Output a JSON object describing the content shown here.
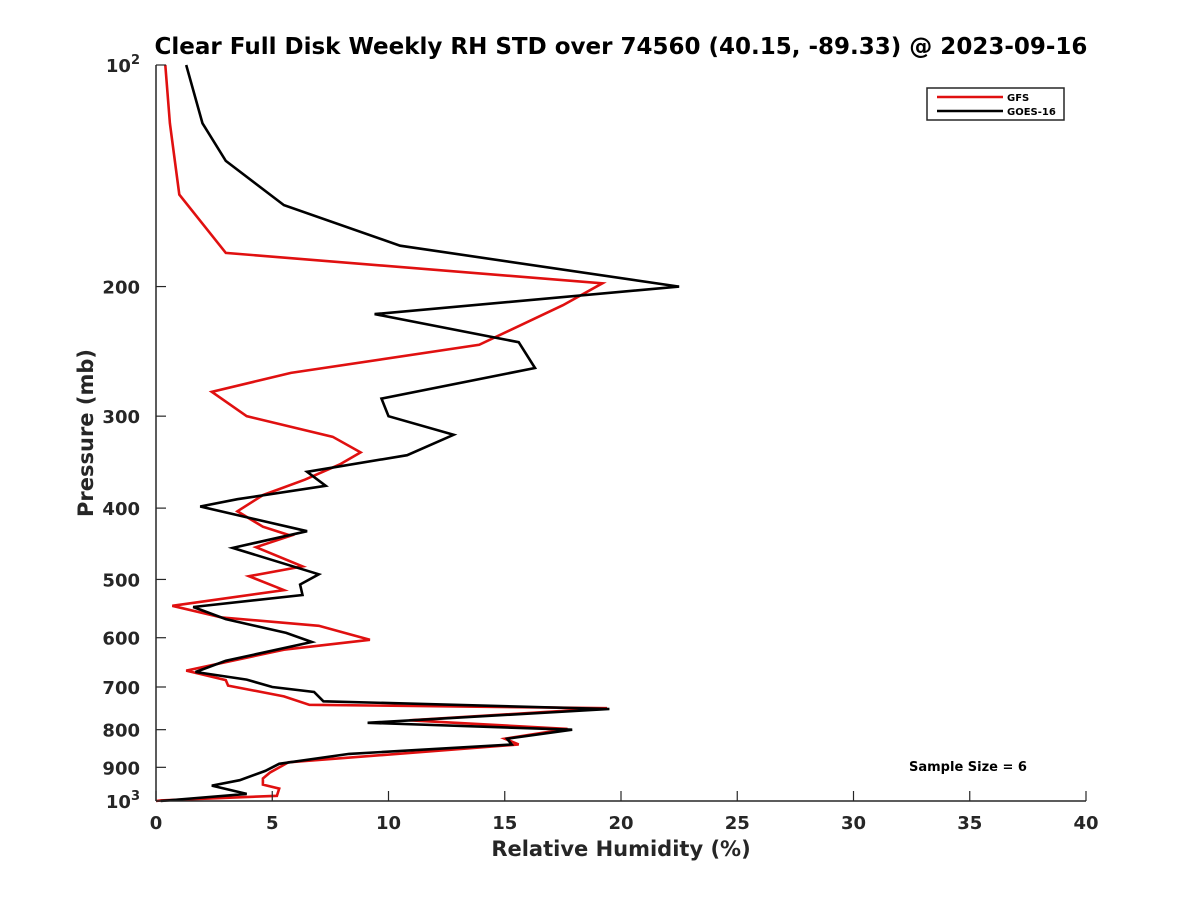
{
  "chart_data": {
    "type": "line",
    "title": "Clear Full Disk Weekly RH STD over 74560 (40.15, -89.33) @ 2023-09-16",
    "xlabel": "Relative Humidity (%)",
    "ylabel": "Pressure (mb)",
    "xlim": [
      0,
      40
    ],
    "ylim": [
      100,
      1000
    ],
    "y_scale": "log",
    "y_reversed": true,
    "grid": false,
    "legend_position": "top-right",
    "x_ticks": [
      0,
      5,
      10,
      15,
      20,
      25,
      30,
      35,
      40
    ],
    "x_tick_labels": [
      "0",
      "5",
      "10",
      "15",
      "20",
      "25",
      "30",
      "35",
      "40"
    ],
    "y_ticks": [
      {
        "value": 100,
        "base": "10",
        "exp": "2"
      },
      {
        "value": 200,
        "label": "200"
      },
      {
        "value": 300,
        "label": "300"
      },
      {
        "value": 400,
        "label": "400"
      },
      {
        "value": 500,
        "label": "500"
      },
      {
        "value": 600,
        "label": "600"
      },
      {
        "value": 700,
        "label": "700"
      },
      {
        "value": 800,
        "label": "800"
      },
      {
        "value": 900,
        "label": "900"
      },
      {
        "value": 1000,
        "base": "10",
        "exp": "3"
      }
    ],
    "annotation": "Sample Size = 6",
    "series": [
      {
        "name": "GFS",
        "color": "#e01010",
        "points": [
          [
            0.4,
            100
          ],
          [
            0.6,
            120
          ],
          [
            1.0,
            150
          ],
          [
            3.0,
            180
          ],
          [
            19.2,
            198
          ],
          [
            17.5,
            212
          ],
          [
            13.9,
            240
          ],
          [
            5.8,
            262
          ],
          [
            2.4,
            278
          ],
          [
            3.9,
            300
          ],
          [
            7.6,
            320
          ],
          [
            8.8,
            336
          ],
          [
            7.9,
            349
          ],
          [
            6.4,
            366
          ],
          [
            4.6,
            384
          ],
          [
            3.5,
            404
          ],
          [
            4.6,
            424
          ],
          [
            5.8,
            436
          ],
          [
            4.3,
            452
          ],
          [
            6.3,
            480
          ],
          [
            4.0,
            495
          ],
          [
            5.5,
            517
          ],
          [
            0.7,
            543
          ],
          [
            2.8,
            563
          ],
          [
            7.0,
            578
          ],
          [
            9.2,
            604
          ],
          [
            5.5,
            623
          ],
          [
            1.3,
            665
          ],
          [
            3.0,
            685
          ],
          [
            3.1,
            697
          ],
          [
            5.5,
            721
          ],
          [
            6.6,
            740
          ],
          [
            19.4,
            748
          ],
          [
            10.9,
            777
          ],
          [
            17.7,
            798
          ],
          [
            15.0,
            823
          ],
          [
            15.6,
            838
          ],
          [
            5.7,
            886
          ],
          [
            4.9,
            915
          ],
          [
            4.6,
            932
          ],
          [
            4.6,
            950
          ],
          [
            5.3,
            962
          ],
          [
            5.2,
            984
          ],
          [
            0.2,
            998
          ],
          [
            0.0,
            1000
          ]
        ]
      },
      {
        "name": "GOES-16",
        "color": "#000000",
        "points": [
          [
            1.3,
            100
          ],
          [
            2.0,
            120
          ],
          [
            3.0,
            135
          ],
          [
            5.5,
            155
          ],
          [
            10.5,
            176
          ],
          [
            22.5,
            200
          ],
          [
            9.4,
            218
          ],
          [
            15.6,
            238
          ],
          [
            16.3,
            258
          ],
          [
            9.7,
            284
          ],
          [
            10.0,
            300
          ],
          [
            12.8,
            318
          ],
          [
            10.8,
            339
          ],
          [
            6.5,
            357
          ],
          [
            7.3,
            373
          ],
          [
            3.5,
            389
          ],
          [
            1.9,
            398
          ],
          [
            6.5,
            430
          ],
          [
            3.3,
            453
          ],
          [
            7.0,
            492
          ],
          [
            6.2,
            508
          ],
          [
            6.3,
            525
          ],
          [
            1.6,
            545
          ],
          [
            3.0,
            566
          ],
          [
            5.6,
            591
          ],
          [
            6.7,
            608
          ],
          [
            3.0,
            645
          ],
          [
            1.7,
            668
          ],
          [
            3.9,
            684
          ],
          [
            5.0,
            700
          ],
          [
            6.8,
            711
          ],
          [
            7.2,
            732
          ],
          [
            19.5,
            750
          ],
          [
            9.1,
            783
          ],
          [
            17.9,
            800
          ],
          [
            15.1,
            823
          ],
          [
            15.3,
            838
          ],
          [
            8.3,
            863
          ],
          [
            5.3,
            890
          ],
          [
            4.7,
            910
          ],
          [
            3.6,
            937
          ],
          [
            2.4,
            953
          ],
          [
            3.9,
            978
          ],
          [
            0.2,
            1000
          ]
        ]
      }
    ]
  }
}
